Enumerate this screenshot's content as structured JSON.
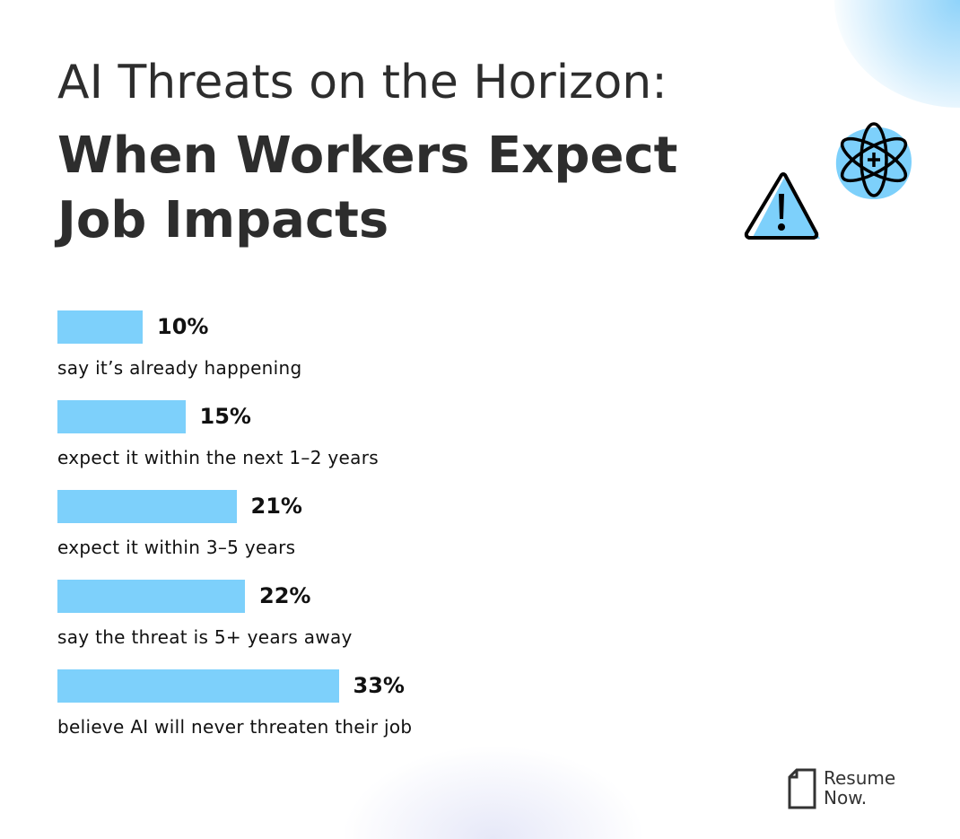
{
  "title": {
    "line1": "AI Threats on the Horizon:",
    "line2": "When Workers Expect Job Impacts"
  },
  "chart_data": {
    "type": "bar",
    "orientation": "horizontal",
    "title": "AI Threats on the Horizon: When Workers Expect Job Impacts",
    "categories": [
      "say it’s already happening",
      "expect it within the next 1–2 years",
      "expect it within 3–5 years",
      "say the threat is 5+ years away",
      "believe AI will never threaten their job"
    ],
    "values": [
      10,
      15,
      21,
      22,
      33
    ],
    "value_labels": [
      "10%",
      "15%",
      "21%",
      "22%",
      "33%"
    ],
    "unit": "%",
    "bar_color": "#7dd0fb",
    "grid": false
  },
  "icons": [
    "warning-icon",
    "atom-icon"
  ],
  "brand": {
    "line1": "Resume",
    "line2": "Now."
  }
}
